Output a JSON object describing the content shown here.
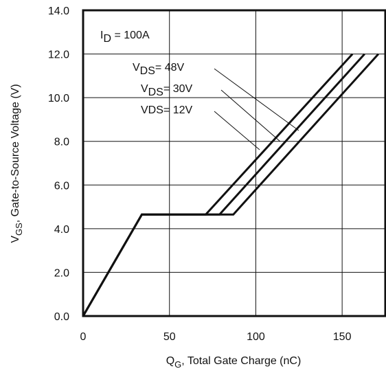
{
  "chart_data": {
    "type": "line",
    "xlabel": {
      "main": "Q",
      "sub": "G",
      "rest": ",  Total Gate Charge (nC)"
    },
    "ylabel": {
      "main": "V",
      "sub": "GS",
      "rest": ", Gate-to-Source Voltage (V)"
    },
    "xlim": [
      0,
      175
    ],
    "ylim": [
      0,
      14
    ],
    "x_ticks": [
      0,
      50,
      100,
      150
    ],
    "x_tick_labels": [
      "0",
      "50",
      "100",
      "150"
    ],
    "y_ticks": [
      0,
      2,
      4,
      6,
      8,
      10,
      12,
      14
    ],
    "y_tick_labels": [
      "0.0",
      "2.0",
      "4.0",
      "6.0",
      "8.0",
      "10.0",
      "12.0",
      "14.0"
    ],
    "grid": true,
    "condition_label": {
      "main": "I",
      "sub": "D",
      "rest": " = 100A"
    },
    "series": [
      {
        "name": {
          "main": "V",
          "sub": "DS",
          "rest": "= 48V"
        },
        "x": [
          0,
          34,
          87,
          171
        ],
        "y": [
          0,
          4.65,
          4.65,
          12
        ]
      },
      {
        "name": {
          "main": "V",
          "sub": "DS",
          "rest": "= 30V"
        },
        "x": [
          0,
          34,
          79,
          163
        ],
        "y": [
          0,
          4.65,
          4.65,
          12
        ]
      },
      {
        "name": {
          "main": "",
          "sub": "",
          "rest": "VDS= 12V"
        },
        "x": [
          0,
          34,
          71,
          156
        ],
        "y": [
          0,
          4.65,
          4.65,
          12
        ]
      }
    ],
    "line_color": "#111111",
    "grid_color": "#111111"
  }
}
